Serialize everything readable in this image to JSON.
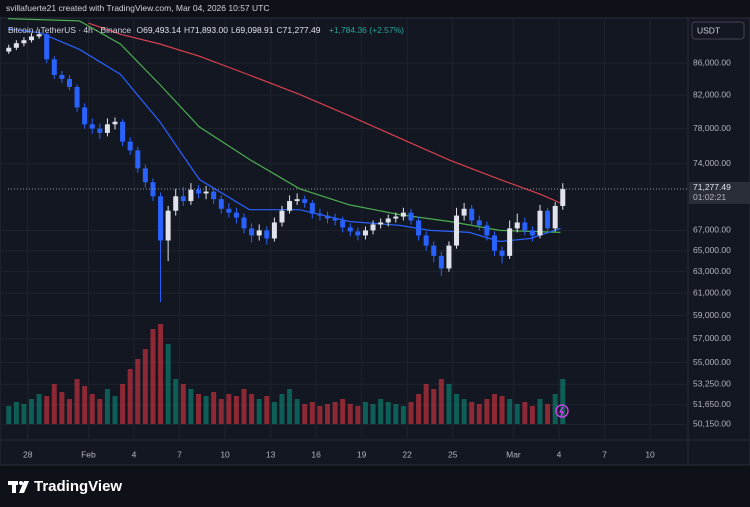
{
  "header": {
    "watermark_text": "svillafuerte21 created with TradingView.com, Mar 04, 2026 10:57 UTC",
    "symbol": "Bitcoin / TetherUS · 4h · Binance",
    "ohlc": [
      {
        "label": "O",
        "value": "69,493.14"
      },
      {
        "label": "H",
        "value": "71,893.00"
      },
      {
        "label": "L",
        "value": "69,098.91"
      },
      {
        "label": "C",
        "value": "71,277.49"
      }
    ],
    "change": "+1,784.36 (+2.57%)",
    "currency": "USDT"
  },
  "footer": {
    "logo": "TradingView"
  },
  "chart_data": {
    "type": "candlestick",
    "log_scale": true,
    "grid": true,
    "up_color": "#e0e3eb",
    "down_color": "#2962ff",
    "volume_up_color": "rgba(8,153,129,0.55)",
    "volume_down_color": "rgba(242,54,69,0.55)",
    "ylim": [
      49000,
      92000
    ],
    "yticks": [
      {
        "value": 86000,
        "label": "86,000.00"
      },
      {
        "value": 82000,
        "label": "82,000.00"
      },
      {
        "value": 78000,
        "label": "78,000.00"
      },
      {
        "value": 74000,
        "label": "74,000.00"
      },
      {
        "value": 67000,
        "label": "67,000.00"
      },
      {
        "value": 65000,
        "label": "65,000.00"
      },
      {
        "value": 63000,
        "label": "63,000.00"
      },
      {
        "value": 61000,
        "label": "61,000.00"
      },
      {
        "value": 59000,
        "label": "59,000.00"
      },
      {
        "value": 57000,
        "label": "57,000.00"
      },
      {
        "value": 55000,
        "label": "55,000.00"
      },
      {
        "value": 53250,
        "label": "53,250.00"
      },
      {
        "value": 51650,
        "label": "51,650.00"
      },
      {
        "value": 50150,
        "label": "50,150.00"
      }
    ],
    "xlim": [
      -1.3,
      43.5
    ],
    "xticks": [
      {
        "value": 0,
        "label": "28"
      },
      {
        "value": 4,
        "label": "Feb"
      },
      {
        "value": 7,
        "label": "4"
      },
      {
        "value": 10,
        "label": "7"
      },
      {
        "value": 13,
        "label": "10"
      },
      {
        "value": 16,
        "label": "13"
      },
      {
        "value": 19,
        "label": "16"
      },
      {
        "value": 22,
        "label": "19"
      },
      {
        "value": 25,
        "label": "22"
      },
      {
        "value": 28,
        "label": "25"
      },
      {
        "value": 32,
        "label": "Mar"
      },
      {
        "value": 35,
        "label": "4"
      },
      {
        "value": 38,
        "label": "7"
      },
      {
        "value": 41,
        "label": "10"
      }
    ],
    "x": [
      -1.25,
      -0.75,
      -0.25,
      0.25,
      0.75,
      1.25,
      1.75,
      2.25,
      2.75,
      3.25,
      3.75,
      4.25,
      4.75,
      5.25,
      5.75,
      6.25,
      6.75,
      7.25,
      7.75,
      8.25,
      8.75,
      9.25,
      9.75,
      10.25,
      10.75,
      11.25,
      11.75,
      12.25,
      12.75,
      13.25,
      13.75,
      14.25,
      14.75,
      15.25,
      15.75,
      16.25,
      16.75,
      17.25,
      17.75,
      18.25,
      18.75,
      19.25,
      19.75,
      20.25,
      20.75,
      21.25,
      21.75,
      22.25,
      22.75,
      23.25,
      23.75,
      24.25,
      24.75,
      25.25,
      25.75,
      26.25,
      26.75,
      27.25,
      27.75,
      28.25,
      28.75,
      29.25,
      29.75,
      30.25,
      30.75,
      31.25,
      31.75,
      32.25,
      32.75,
      33.25,
      33.75,
      34.25,
      34.75,
      35.25
    ],
    "open": [
      87500,
      88000,
      88600,
      89000,
      89500,
      89800,
      86500,
      84500,
      84000,
      83000,
      80500,
      78500,
      78000,
      77500,
      78500,
      78800,
      76500,
      75500,
      73500,
      72000,
      70500,
      66000,
      69000,
      70500,
      70000,
      71200,
      70800,
      71000,
      70200,
      69200,
      68800,
      68300,
      67200,
      66500,
      67000,
      66200,
      67800,
      69000,
      70000,
      70200,
      69800,
      68700,
      68500,
      68200,
      68000,
      67300,
      66900,
      66500,
      67000,
      67600,
      67800,
      68200,
      68400,
      68800,
      68000,
      66500,
      65500,
      64500,
      63300,
      65500,
      68500,
      69200,
      68000,
      67500,
      66500,
      65000,
      64500,
      67200,
      67800,
      67000,
      66500,
      69000,
      67200,
      69493.14
    ],
    "high": [
      88400,
      89000,
      89400,
      90000,
      90500,
      90100,
      86900,
      85000,
      84500,
      83300,
      81000,
      79200,
      78600,
      79200,
      79300,
      79100,
      77000,
      75900,
      73900,
      72400,
      70900,
      69500,
      71300,
      71500,
      71900,
      71700,
      71600,
      71400,
      70600,
      69800,
      69300,
      68700,
      67700,
      67600,
      67400,
      68300,
      69500,
      70600,
      70800,
      70600,
      70100,
      69200,
      68900,
      68700,
      68400,
      67700,
      67300,
      67400,
      68000,
      68200,
      68600,
      68800,
      69300,
      69200,
      68400,
      66900,
      65900,
      64900,
      65900,
      69300,
      69800,
      69600,
      68500,
      67900,
      66900,
      65400,
      68000,
      68700,
      68300,
      67400,
      69600,
      69300,
      69900,
      71893
    ],
    "low": [
      87200,
      87700,
      88200,
      88700,
      89200,
      86000,
      84000,
      83500,
      82600,
      80000,
      78000,
      77400,
      76800,
      77100,
      77900,
      76000,
      75000,
      73000,
      71400,
      70000,
      60200,
      64000,
      68500,
      69500,
      69600,
      70300,
      70200,
      69700,
      68700,
      68300,
      67700,
      66700,
      65800,
      66000,
      65600,
      65900,
      67400,
      68700,
      69600,
      69300,
      68200,
      68000,
      67700,
      67500,
      66800,
      66400,
      66000,
      66100,
      66600,
      67200,
      67400,
      67800,
      68000,
      67600,
      66000,
      65000,
      63900,
      62600,
      63000,
      65200,
      68000,
      67500,
      67000,
      66000,
      64500,
      63800,
      64200,
      66800,
      66500,
      65900,
      66200,
      66700,
      66900,
      69098.91
    ],
    "close": [
      88000,
      88600,
      89000,
      89500,
      89800,
      86500,
      84500,
      84000,
      83000,
      80500,
      78500,
      78000,
      77500,
      78500,
      78800,
      76500,
      75500,
      73500,
      72000,
      70500,
      66000,
      69000,
      70500,
      70000,
      71200,
      70800,
      71000,
      70200,
      69200,
      68800,
      68300,
      67200,
      66500,
      67000,
      66200,
      67800,
      69000,
      70000,
      70200,
      69800,
      68700,
      68500,
      68200,
      68000,
      67300,
      66900,
      66500,
      67000,
      67600,
      67800,
      68200,
      68400,
      68800,
      68000,
      66500,
      65500,
      64500,
      63300,
      65500,
      68500,
      69200,
      68000,
      67500,
      66500,
      65000,
      64500,
      67200,
      67800,
      67000,
      66500,
      69000,
      67200,
      69493.14,
      71277.49
    ],
    "volume": [
      18,
      22,
      20,
      25,
      30,
      28,
      40,
      32,
      25,
      45,
      38,
      30,
      25,
      35,
      28,
      40,
      55,
      65,
      75,
      95,
      100,
      80,
      45,
      40,
      35,
      30,
      28,
      32,
      25,
      30,
      28,
      35,
      30,
      25,
      28,
      22,
      30,
      35,
      25,
      20,
      22,
      18,
      20,
      22,
      25,
      20,
      18,
      22,
      20,
      25,
      22,
      20,
      18,
      22,
      30,
      40,
      35,
      45,
      40,
      30,
      25,
      22,
      20,
      25,
      30,
      28,
      25,
      20,
      22,
      18,
      25,
      20,
      30,
      45
    ],
    "last_price": {
      "label": "71,277.49",
      "countdown": "01:02:21"
    },
    "moving_averages": [
      {
        "color": "#d8404f",
        "x": [
          4,
          6.1,
          8.7,
          11.3,
          14.6,
          17.9,
          21.2,
          24.5,
          27.8,
          31.1,
          33.8,
          35.1
        ],
        "values": [
          91300,
          89800,
          88500,
          86900,
          84500,
          82100,
          79500,
          76900,
          74400,
          72300,
          70700,
          69800
        ]
      },
      {
        "color": "#4caf50",
        "x": [
          -1.3,
          3.4,
          6.1,
          8.7,
          11.3,
          14.6,
          17.9,
          21.2,
          24.5,
          27.8,
          31.1,
          35.1
        ],
        "values": [
          91900,
          91600,
          88500,
          83300,
          78200,
          74500,
          71300,
          69600,
          68600,
          67900,
          67000,
          66800
        ]
      },
      {
        "color": "#2962ff",
        "x": [
          -1.3,
          0.8,
          3.4,
          6.1,
          8.7,
          11.3,
          14.6,
          17.9,
          21.2,
          24.5,
          26.5,
          29.1,
          31.1,
          33.1,
          35.1
        ],
        "values": [
          90500,
          90000,
          87800,
          84600,
          78800,
          72300,
          69100,
          69100,
          67900,
          67500,
          67000,
          66800,
          65900,
          66200,
          67200
        ]
      }
    ]
  }
}
